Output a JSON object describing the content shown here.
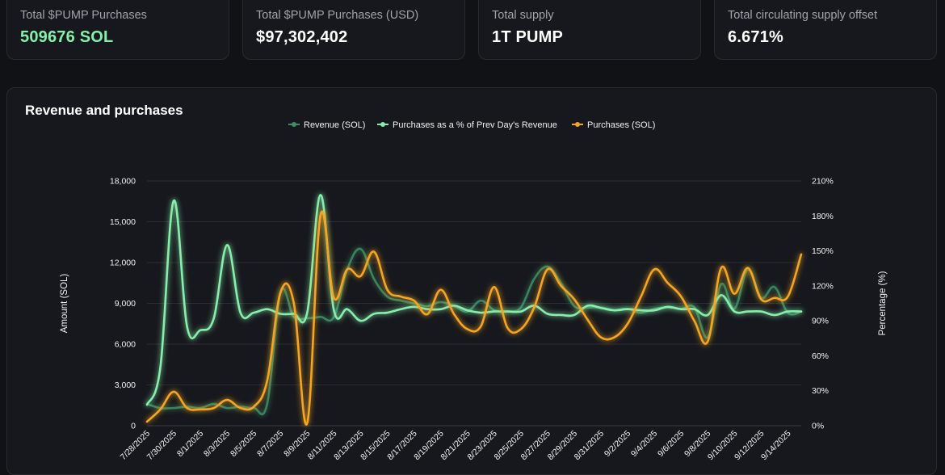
{
  "stats": [
    {
      "label": "Total $PUMP Purchases",
      "value": "509676 SOL",
      "accent": "#86efac"
    },
    {
      "label": "Total $PUMP Purchases (USD)",
      "value": "$97,302,402"
    },
    {
      "label": "Total supply",
      "value": "1T PUMP"
    },
    {
      "label": "Total circulating supply offset",
      "value": "6.671%"
    }
  ],
  "chart_data": {
    "type": "line",
    "title": "Revenue and purchases",
    "ylabel": "Amount (SOL)",
    "y2label": "Percentage (%)",
    "ylim": [
      0,
      18000
    ],
    "y2lim": [
      0,
      210
    ],
    "yticks": [
      "0",
      "3,000",
      "6,000",
      "9,000",
      "12,000",
      "15,000",
      "18,000"
    ],
    "y2ticks": [
      "0%",
      "30%",
      "60%",
      "90%",
      "120%",
      "150%",
      "180%",
      "210%"
    ],
    "legend_position": "top-center",
    "grid": true,
    "x": [
      "7/28/2025",
      "7/29/2025",
      "7/30/2025",
      "7/31/2025",
      "8/1/2025",
      "8/2/2025",
      "8/3/2025",
      "8/4/2025",
      "8/5/2025",
      "8/6/2025",
      "8/7/2025",
      "8/8/2025",
      "8/9/2025",
      "8/10/2025",
      "8/11/2025",
      "8/12/2025",
      "8/13/2025",
      "8/14/2025",
      "8/15/2025",
      "8/16/2025",
      "8/17/2025",
      "8/18/2025",
      "8/19/2025",
      "8/20/2025",
      "8/21/2025",
      "8/22/2025",
      "8/23/2025",
      "8/24/2025",
      "8/25/2025",
      "8/26/2025",
      "8/27/2025",
      "8/28/2025",
      "8/29/2025",
      "8/30/2025",
      "8/31/2025",
      "9/1/2025",
      "9/2/2025",
      "9/3/2025",
      "9/4/2025",
      "9/5/2025",
      "9/6/2025",
      "9/7/2025",
      "9/8/2025",
      "9/9/2025",
      "9/10/2025",
      "9/11/2025",
      "9/12/2025",
      "9/13/2025",
      "9/14/2025",
      "9/15/2025"
    ],
    "xtick_labels": [
      "7/28/2025",
      "7/30/2025",
      "8/1/2025",
      "8/3/2025",
      "8/5/2025",
      "8/7/2025",
      "8/9/2025",
      "8/11/2025",
      "8/13/2025",
      "8/15/2025",
      "8/17/2025",
      "8/19/2025",
      "8/21/2025",
      "8/23/2025",
      "8/25/2025",
      "8/27/2025",
      "8/29/2025",
      "8/31/2025",
      "9/2/2025",
      "9/4/2025",
      "9/6/2025",
      "9/8/2025",
      "9/10/2025",
      "9/12/2025",
      "9/14/2025"
    ],
    "series": [
      {
        "name": "Revenue (SOL)",
        "axis": "left",
        "color": "#3f8f66",
        "values": [
          1600,
          1300,
          1300,
          1400,
          1300,
          1600,
          1300,
          1400,
          1300,
          1600,
          9800,
          8000,
          7900,
          8000,
          8000,
          11500,
          13000,
          10800,
          9500,
          9200,
          9000,
          8800,
          9100,
          8800,
          8400,
          9200,
          8500,
          8400,
          8700,
          10800,
          11700,
          10500,
          8800,
          8700,
          8700,
          8500,
          8600,
          8300,
          8600,
          8700,
          8600,
          8700,
          6500,
          10400,
          8600,
          11500,
          9400,
          10200,
          8300,
          8400
        ]
      },
      {
        "name": "Purchases as a % of Prev Day's Revenue",
        "axis": "right",
        "color": "#86efac",
        "values": [
          18,
          50,
          193,
          85,
          82,
          92,
          155,
          97,
          97,
          100,
          96,
          96,
          97,
          198,
          99,
          100,
          90,
          96,
          97,
          100,
          102,
          100,
          100,
          103,
          99,
          97,
          98,
          98,
          98,
          103,
          96,
          95,
          95,
          103,
          101,
          99,
          100,
          99,
          99,
          102,
          100,
          100,
          95,
          112,
          98,
          98,
          98,
          95,
          98,
          98
        ]
      },
      {
        "name": "Purchases (SOL)",
        "axis": "left",
        "color": "#f5a524",
        "values": [
          300,
          1200,
          2500,
          1300,
          1200,
          1300,
          1900,
          1300,
          1400,
          3300,
          9800,
          9000,
          200,
          15500,
          9400,
          11500,
          11000,
          12800,
          10000,
          9500,
          9200,
          8200,
          10000,
          8200,
          7100,
          7300,
          10200,
          7200,
          7100,
          8700,
          11500,
          10300,
          9300,
          7800,
          6500,
          6500,
          7500,
          9500,
          11500,
          10500,
          9500,
          7700,
          6200,
          11600,
          9700,
          11600,
          9300,
          9400,
          9500,
          12600
        ]
      }
    ]
  }
}
